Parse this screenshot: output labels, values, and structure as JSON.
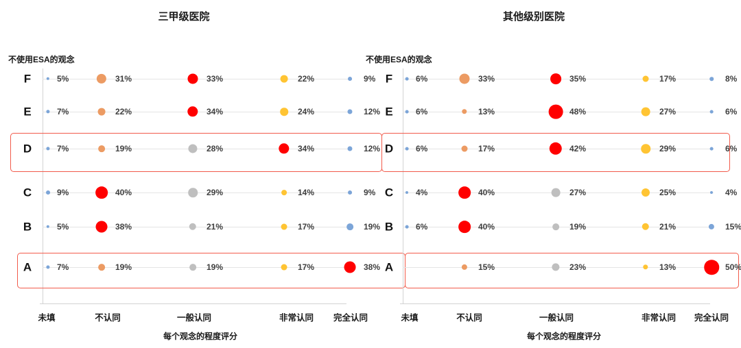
{
  "styles": {
    "colors": {
      "red": "#ff0000",
      "orange": "#ec9b63",
      "gray": "#bfbfbf",
      "yellow": "#ffc433",
      "blue": "#7ca5d8",
      "highlight_box_border": "#f25a4a",
      "row_line": "#e4e4e4",
      "axis_line": "#d2d2d2",
      "value_label_text": "#3f3f3f"
    }
  },
  "chart_data": [
    {
      "type": "scatter",
      "title": "三甲级医院",
      "ylabel": "不使用ESA的观念",
      "xlabel": "每个观念的程度评分",
      "x_categories": [
        "未填",
        "不认同",
        "一般认同",
        "非常认同",
        "完全认同"
      ],
      "value_suffix": "%",
      "legend": "bubble size and value = percentage; red = highest value in row",
      "highlighted_rows": [
        "D",
        "A"
      ],
      "rows": [
        {
          "label": "F",
          "values": [
            5,
            31,
            33,
            22,
            9
          ],
          "colors": [
            "blue",
            "orange",
            "red",
            "yellow",
            "blue"
          ]
        },
        {
          "label": "E",
          "values": [
            7,
            22,
            34,
            24,
            12
          ],
          "colors": [
            "blue",
            "orange",
            "red",
            "yellow",
            "blue"
          ]
        },
        {
          "label": "D",
          "values": [
            7,
            19,
            28,
            34,
            12
          ],
          "colors": [
            "blue",
            "orange",
            "gray",
            "red",
            "blue"
          ]
        },
        {
          "label": "C",
          "values": [
            9,
            40,
            29,
            14,
            9
          ],
          "colors": [
            "blue",
            "red",
            "gray",
            "yellow",
            "blue"
          ]
        },
        {
          "label": "B",
          "values": [
            5,
            38,
            21,
            17,
            19
          ],
          "colors": [
            "blue",
            "red",
            "gray",
            "yellow",
            "blue"
          ]
        },
        {
          "label": "A",
          "values": [
            7,
            19,
            19,
            17,
            38
          ],
          "colors": [
            "blue",
            "orange",
            "gray",
            "yellow",
            "red"
          ]
        }
      ]
    },
    {
      "type": "scatter",
      "title": "其他级别医院",
      "ylabel": "不使用ESA的观念",
      "xlabel": "每个观念的程度评分",
      "x_categories": [
        "未填",
        "不认同",
        "一般认同",
        "非常认同",
        "完全认同"
      ],
      "value_suffix": "%",
      "legend": "bubble size and value = percentage; red = highest value in row",
      "highlighted_rows": [
        "D",
        "A"
      ],
      "rows": [
        {
          "label": "F",
          "values": [
            6,
            33,
            35,
            17,
            8
          ],
          "colors": [
            "blue",
            "orange",
            "red",
            "yellow",
            "blue"
          ]
        },
        {
          "label": "E",
          "values": [
            6,
            13,
            48,
            27,
            6
          ],
          "colors": [
            "blue",
            "orange",
            "red",
            "yellow",
            "blue"
          ]
        },
        {
          "label": "D",
          "values": [
            6,
            17,
            42,
            29,
            6
          ],
          "colors": [
            "blue",
            "orange",
            "red",
            "yellow",
            "blue"
          ]
        },
        {
          "label": "C",
          "values": [
            4,
            40,
            27,
            25,
            4
          ],
          "colors": [
            "blue",
            "red",
            "gray",
            "yellow",
            "blue"
          ]
        },
        {
          "label": "B",
          "values": [
            6,
            40,
            19,
            21,
            15
          ],
          "colors": [
            "blue",
            "red",
            "gray",
            "yellow",
            "blue"
          ]
        },
        {
          "label": "A",
          "values": [
            null,
            15,
            23,
            13,
            50
          ],
          "colors": [
            null,
            "orange",
            "gray",
            "yellow",
            "red"
          ]
        }
      ]
    }
  ]
}
